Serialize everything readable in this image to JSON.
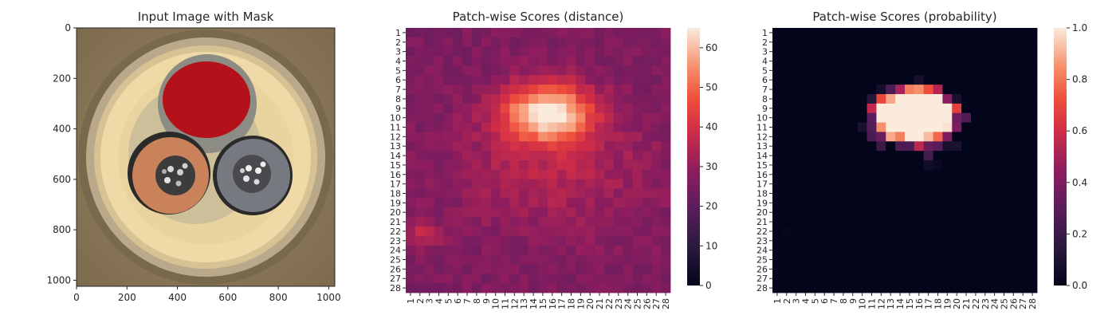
{
  "chart_data": [
    {
      "type": "image",
      "title": "Input Image with Mask",
      "xlim": [
        0,
        1024
      ],
      "ylim": [
        1024,
        0
      ],
      "xticks": [
        0,
        200,
        400,
        600,
        800,
        1000
      ],
      "yticks": [
        0,
        200,
        400,
        600,
        800,
        1000
      ],
      "colors": {
        "background": "#8f7c5c",
        "ring": "#efd9a6",
        "mask": "#b5111b",
        "copper": "#c9825a",
        "gray": "#777980"
      }
    },
    {
      "type": "heatmap",
      "title": "Patch-wise Scores (distance)",
      "rows": 28,
      "cols": 28,
      "xticks": [
        "1",
        "2",
        "3",
        "4",
        "5",
        "6",
        "7",
        "8",
        "9",
        "10",
        "11",
        "12",
        "13",
        "14",
        "15",
        "16",
        "17",
        "18",
        "19",
        "20",
        "21",
        "22",
        "23",
        "24",
        "25",
        "26",
        "27",
        "28"
      ],
      "yticks": [
        "1",
        "2",
        "3",
        "4",
        "5",
        "6",
        "7",
        "8",
        "9",
        "10",
        "11",
        "12",
        "13",
        "14",
        "15",
        "16",
        "17",
        "18",
        "19",
        "20",
        "21",
        "22",
        "23",
        "24",
        "25",
        "26",
        "27",
        "28"
      ],
      "colorbar": {
        "min": 0,
        "max": 65,
        "ticks": [
          0,
          10,
          20,
          30,
          40,
          50,
          60
        ],
        "colormap": "rocket"
      },
      "model": {
        "base": 26,
        "hotspot_center": [
          15.5,
          9.5
        ],
        "hotspot_peak": 65,
        "hotspot_spread": [
          3.2,
          2.1
        ],
        "warm_center": [
          16,
          15
        ],
        "warm_peak": 35,
        "warm_spread": [
          7,
          5
        ],
        "corner_spot": [
          2.5,
          22.5
        ],
        "corner_peak": 38,
        "corner_spread": [
          1.1,
          1.0
        ]
      }
    },
    {
      "type": "heatmap",
      "title": "Patch-wise Scores (probability)",
      "rows": 28,
      "cols": 28,
      "xticks": [
        "1",
        "2",
        "3",
        "4",
        "5",
        "6",
        "7",
        "8",
        "9",
        "10",
        "11",
        "12",
        "13",
        "14",
        "15",
        "16",
        "17",
        "18",
        "19",
        "20",
        "21",
        "22",
        "23",
        "24",
        "25",
        "26",
        "27",
        "28"
      ],
      "yticks": [
        "1",
        "2",
        "3",
        "4",
        "5",
        "6",
        "7",
        "8",
        "9",
        "10",
        "11",
        "12",
        "13",
        "14",
        "15",
        "16",
        "17",
        "18",
        "19",
        "20",
        "21",
        "22",
        "23",
        "24",
        "25",
        "26",
        "27",
        "28"
      ],
      "colorbar": {
        "min": 0.0,
        "max": 1.0,
        "ticks": [
          "0.0",
          "0.2",
          "0.4",
          "0.6",
          "0.8",
          "1.0"
        ],
        "colormap": "rocket"
      },
      "model": {
        "derived_from": "distance",
        "threshold": 38,
        "saturation": 50
      }
    }
  ]
}
